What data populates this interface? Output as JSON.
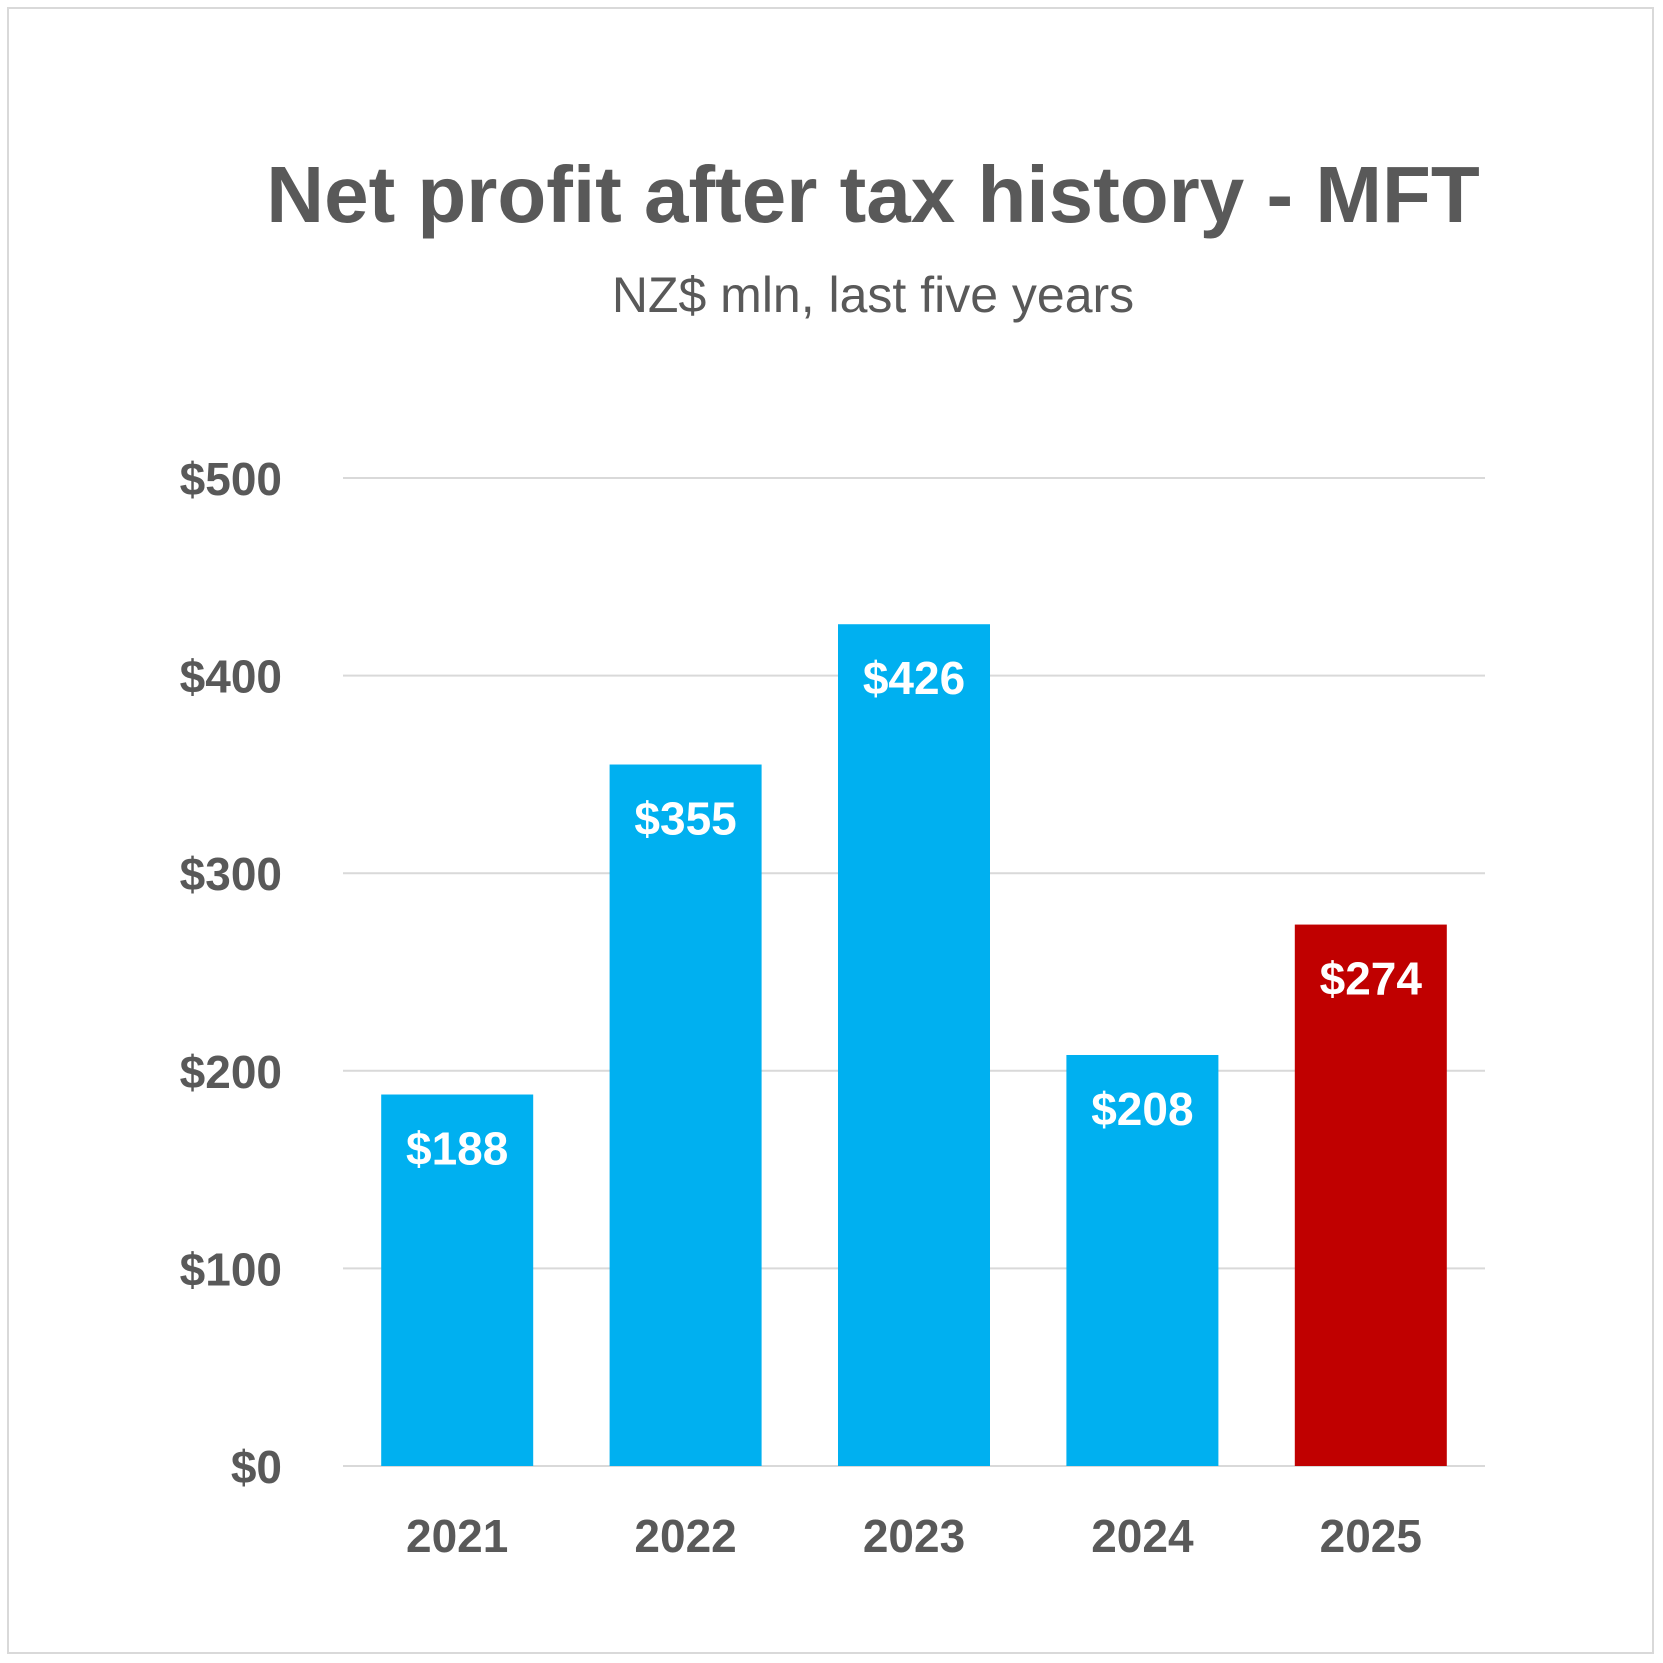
{
  "chart_data": {
    "type": "bar",
    "title": "Net profit after tax history - MFT",
    "subtitle": "NZ$ mln, last five years",
    "categories": [
      "2021",
      "2022",
      "2023",
      "2024",
      "2025"
    ],
    "values": [
      188,
      355,
      426,
      208,
      274
    ],
    "data_labels": [
      "$188",
      "$355",
      "$426",
      "$208",
      "$274"
    ],
    "y_ticks": [
      0,
      100,
      200,
      300,
      400,
      500
    ],
    "y_tick_labels": [
      "$0",
      "$100",
      "$200",
      "$300",
      "$400",
      "$500"
    ],
    "ylim": [
      0,
      500
    ],
    "grid": true,
    "bar_colors": [
      "#00b0f0",
      "#00b0f0",
      "#00b0f0",
      "#00b0f0",
      "#c00000"
    ]
  }
}
